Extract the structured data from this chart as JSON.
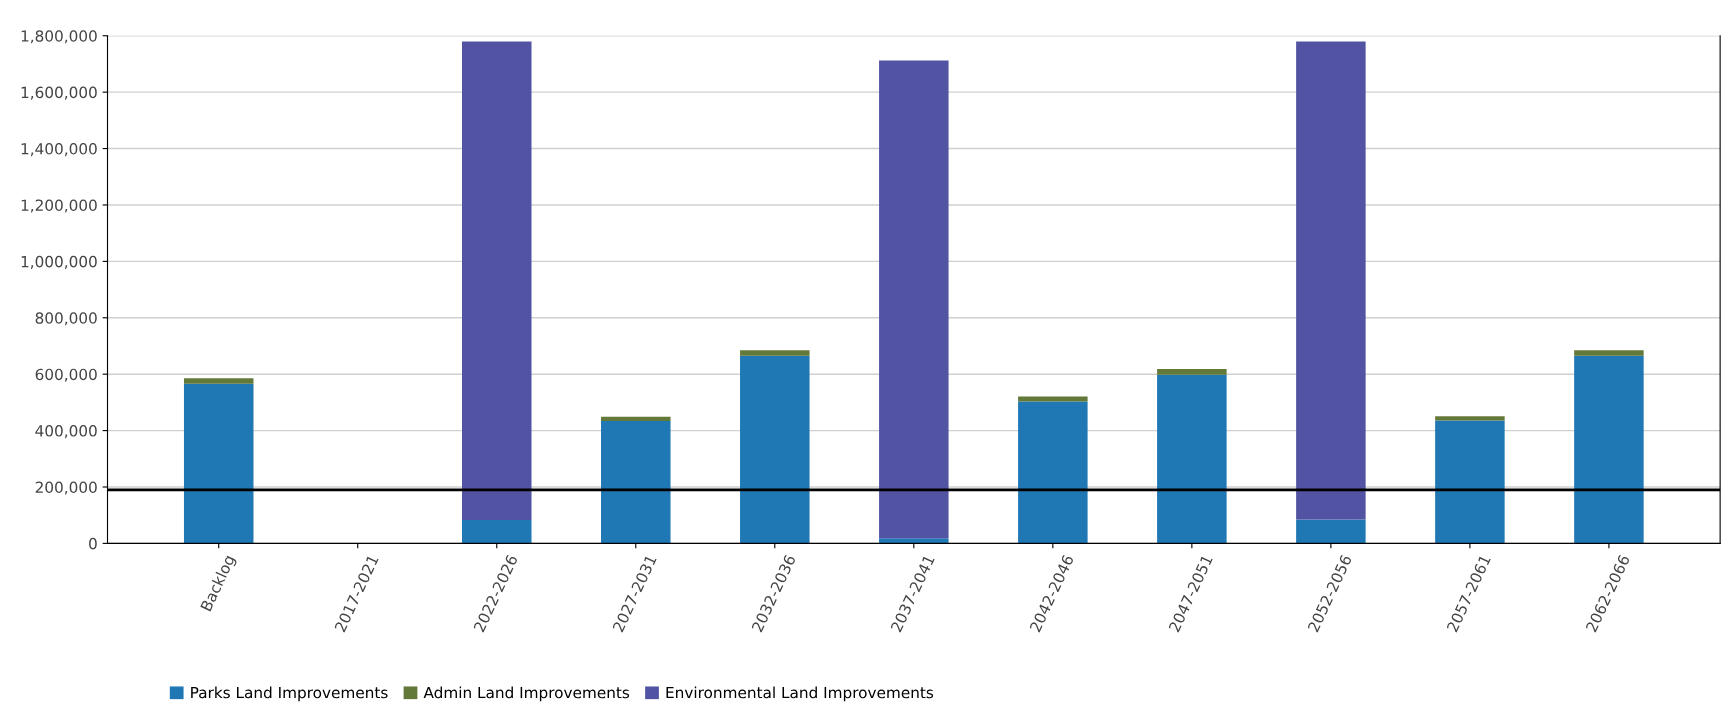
{
  "chart_data": {
    "type": "bar",
    "stacked": true,
    "categories": [
      "Backlog",
      "2017-2021",
      "2022-2026",
      "2027-2031",
      "2032-2036",
      "2037-2041",
      "2042-2046",
      "2047-2051",
      "2052-2056",
      "2057-2061",
      "2062-2066"
    ],
    "series": [
      {
        "name": "Parks Land Improvements",
        "color": "#1f77b4",
        "values": [
          566000,
          0,
          83000,
          434000,
          665000,
          18000,
          503000,
          598000,
          85000,
          436000,
          665000
        ]
      },
      {
        "name": "Admin Land Improvements",
        "color": "#637939",
        "values": [
          20000,
          0,
          0,
          15000,
          20000,
          0,
          18000,
          20000,
          0,
          15000,
          20000
        ]
      },
      {
        "name": "Environmental Land Improvements",
        "color": "#5254a3",
        "values": [
          0,
          0,
          1697000,
          0,
          0,
          1694000,
          0,
          0,
          1695000,
          0,
          0
        ]
      }
    ],
    "ylim": [
      0,
      1800000
    ],
    "yticks": [
      {
        "value": 0,
        "label": "0"
      },
      {
        "value": 200000,
        "label": "200,000"
      },
      {
        "value": 400000,
        "label": "400,000"
      },
      {
        "value": 600000,
        "label": "600,000"
      },
      {
        "value": 800000,
        "label": "800,000"
      },
      {
        "value": 1000000,
        "label": "1,000,000"
      },
      {
        "value": 1200000,
        "label": "1,200,000"
      },
      {
        "value": 1400000,
        "label": "1,400,000"
      },
      {
        "value": 1600000,
        "label": "1,600,000"
      },
      {
        "value": 1800000,
        "label": "1,800,000"
      }
    ],
    "ref_lines": [
      {
        "axis": "y",
        "value": 190000,
        "color": "#000000"
      }
    ],
    "grid": "y",
    "legend": "bottom left"
  }
}
